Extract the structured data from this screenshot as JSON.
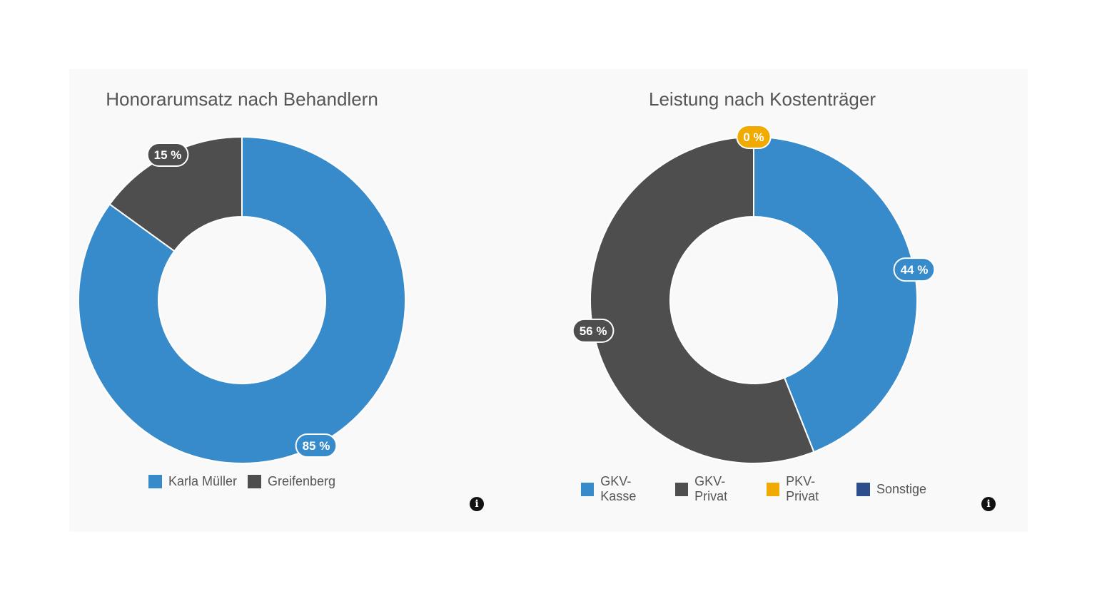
{
  "colors": {
    "blue": "#378bcb",
    "dark": "#4e4e4e",
    "orange": "#f0aa00",
    "navy": "#2c4f8c"
  },
  "info_icon_glyph": "i",
  "chart_data": [
    {
      "type": "pie",
      "title": "Honorarumsatz nach Behandlern",
      "series": [
        {
          "name": "Karla Müller",
          "value": 85,
          "label": "85 %",
          "color": "#378bcb"
        },
        {
          "name": "Greifenberg",
          "value": 15,
          "label": "15 %",
          "color": "#4e4e4e"
        }
      ],
      "legend": "bottom"
    },
    {
      "type": "pie",
      "title": "Leistung nach Kostenträger",
      "series": [
        {
          "name": "GKV-Kasse",
          "value": 44,
          "label": "44 %",
          "color": "#378bcb"
        },
        {
          "name": "GKV-Privat",
          "value": 56,
          "label": "56 %",
          "color": "#4e4e4e"
        },
        {
          "name": "PKV-Privat",
          "value": 0,
          "label": "0 %",
          "color": "#f0aa00"
        },
        {
          "name": "Sonstige",
          "value": 0,
          "label": "",
          "color": "#2c4f8c"
        }
      ],
      "legend": "bottom"
    }
  ]
}
